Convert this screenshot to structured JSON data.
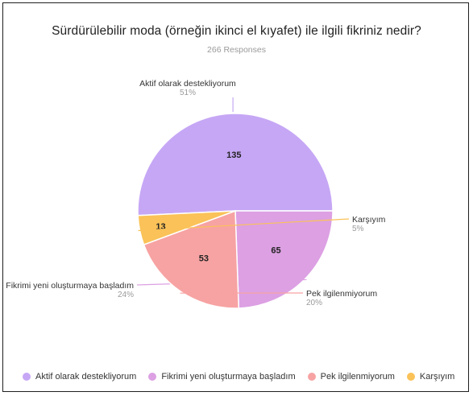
{
  "chart_data": {
    "type": "pie",
    "title": "Sürdürülebilir moda (örneğin ikinci el kıyafet) ile ilgili fikriniz nedir?",
    "subtitle": "266 Responses",
    "slices": [
      {
        "label": "Aktif olarak destekliyorum",
        "value": 135,
        "percent_label": "51%",
        "color": "#c6a7f5"
      },
      {
        "label": "Fikrimi yeni oluşturmaya başladım",
        "value": 65,
        "percent_label": "24%",
        "color": "#dca0e3"
      },
      {
        "label": "Pek ilgilenmiyorum",
        "value": 53,
        "percent_label": "20%",
        "color": "#f7a3a3"
      },
      {
        "label": "Karşıyım",
        "value": 13,
        "percent_label": "5%",
        "color": "#fac258"
      }
    ],
    "legend": {
      "position": "bottom"
    }
  }
}
